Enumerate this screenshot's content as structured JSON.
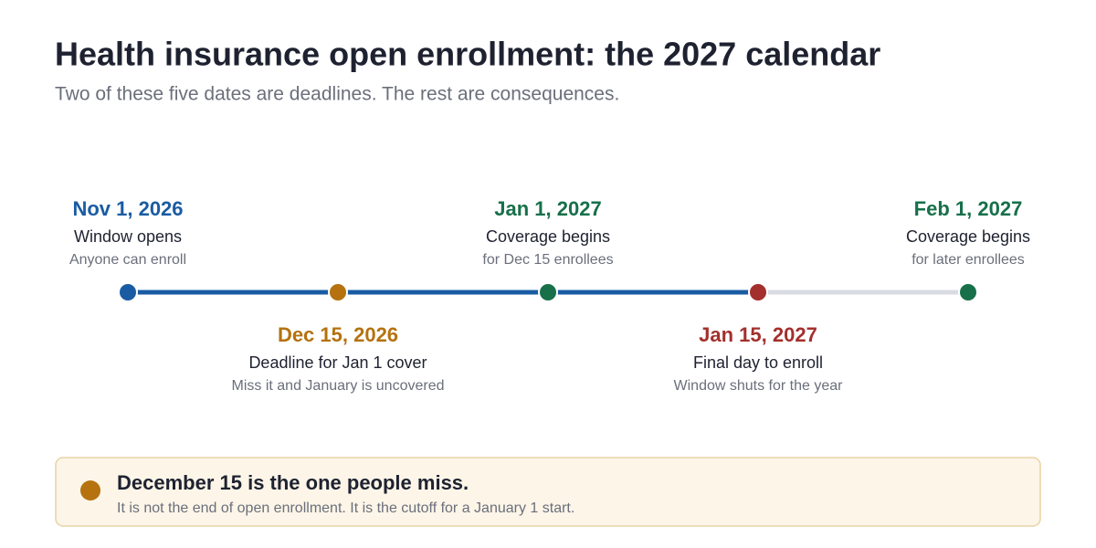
{
  "header": {
    "title": "Health insurance open enrollment: the 2027 calendar",
    "subtitle": "Two of these five dates are deadlines. The rest are consequences."
  },
  "events": [
    {
      "date": "Nov 1, 2026",
      "label": "Window opens",
      "note": "Anyone can enroll",
      "color": "#1a5ca3"
    },
    {
      "date": "Dec 15, 2026",
      "label": "Deadline for Jan 1 cover",
      "note": "Miss it and January is uncovered",
      "color": "#b5720f"
    },
    {
      "date": "Jan 1, 2027",
      "label": "Coverage begins",
      "note": "for Dec 15 enrollees",
      "color": "#17704a"
    },
    {
      "date": "Jan 15, 2027",
      "label": "Final day to enroll",
      "note": "Window shuts for the year",
      "color": "#a3302d"
    },
    {
      "date": "Feb 1, 2027",
      "label": "Coverage begins",
      "note": "for later enrollees",
      "color": "#17704a"
    }
  ],
  "callout": {
    "title": "December 15 is the one people miss.",
    "text": "It is not the end of open enrollment. It is the cutoff for a January 1 start."
  }
}
